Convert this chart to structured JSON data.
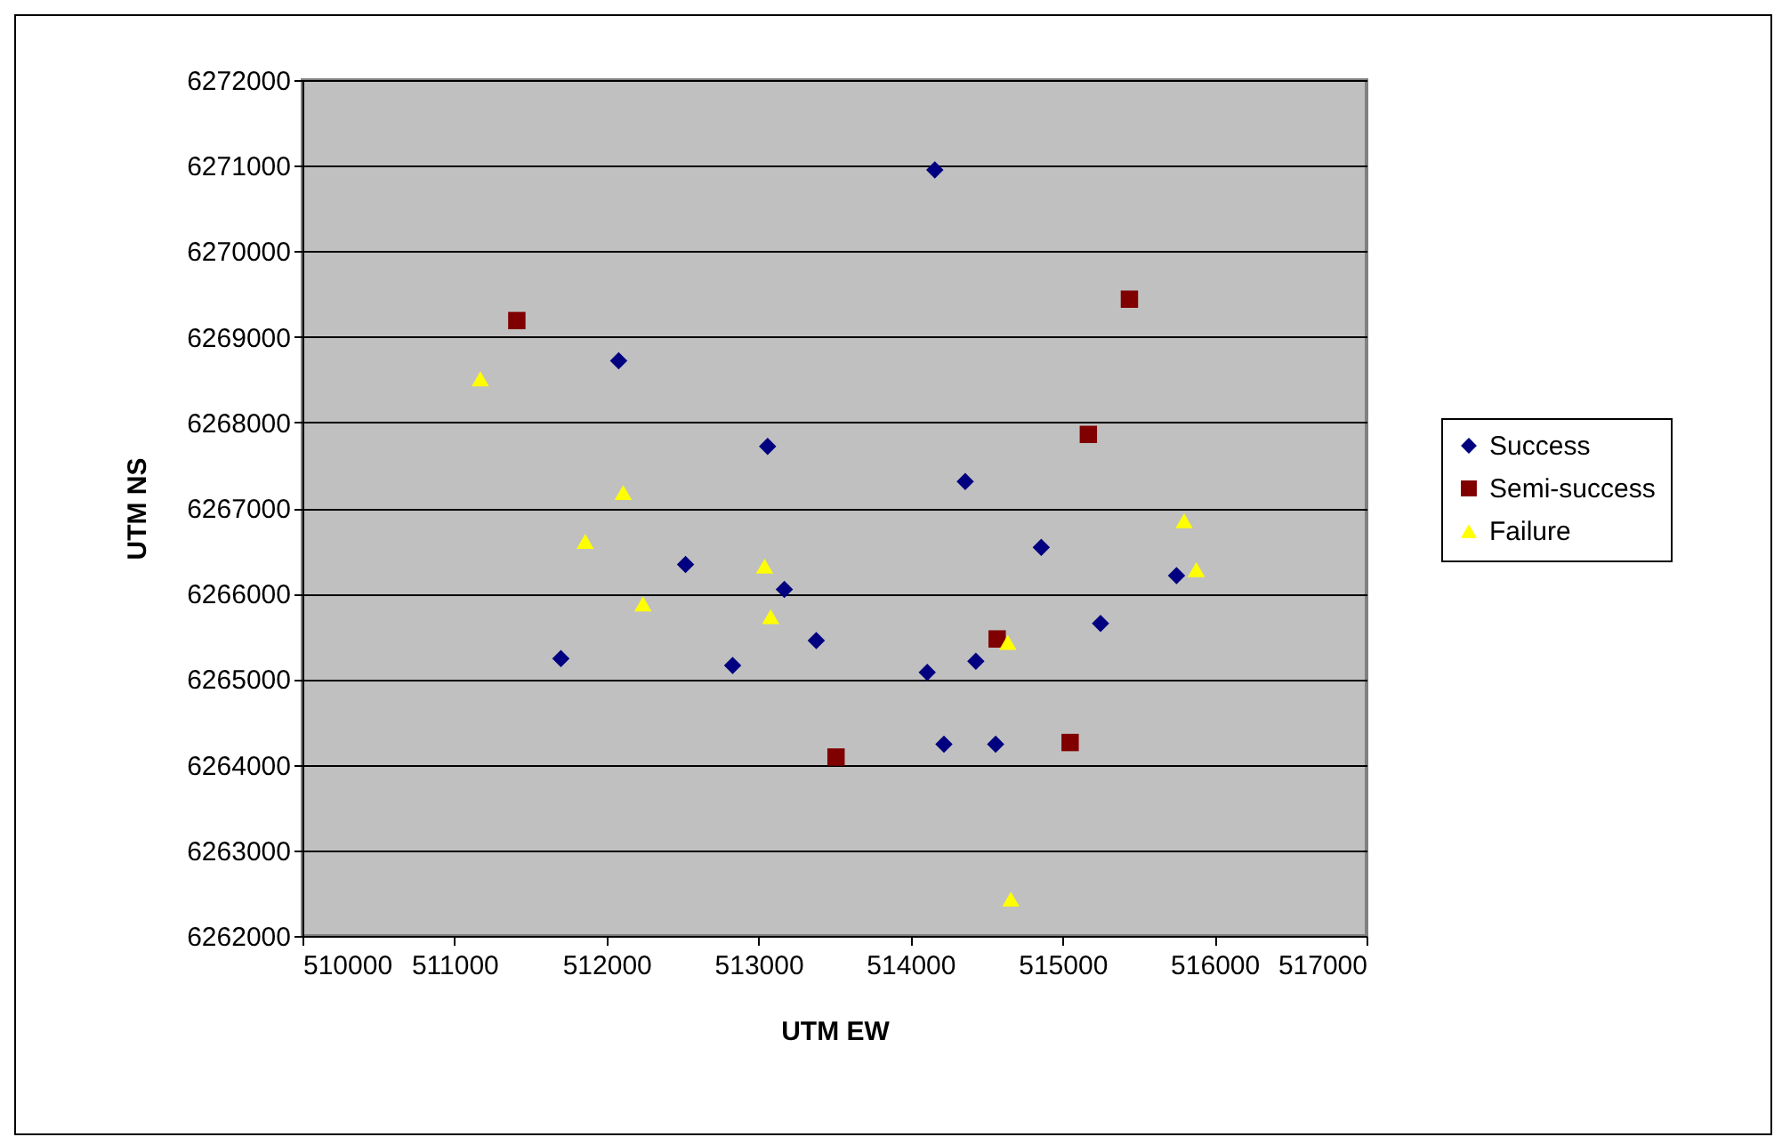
{
  "chart_data": {
    "type": "scatter",
    "xlabel": "UTM EW",
    "ylabel": "UTM NS",
    "xlim": [
      510000,
      517000
    ],
    "xticks": [
      510000,
      511000,
      512000,
      513000,
      514000,
      515000,
      516000,
      517000
    ],
    "ylim": [
      6262000,
      6272000
    ],
    "yticks": [
      6262000,
      6263000,
      6264000,
      6265000,
      6266000,
      6267000,
      6268000,
      6269000,
      6270000,
      6271000,
      6272000
    ],
    "grid": "y",
    "legend": "right",
    "series": [
      {
        "name": "Success",
        "color": "#000080",
        "marker": "diamond",
        "x": [
          512080,
          513060,
          514160,
          514360,
          511700,
          512520,
          512830,
          513170,
          513380,
          514860,
          515750,
          515250,
          514110,
          514430,
          514220,
          514560
        ],
        "values": [
          6268720,
          6267720,
          6270950,
          6267310,
          6265240,
          6266340,
          6265160,
          6266050,
          6265450,
          6266540,
          6266210,
          6265650,
          6265080,
          6265210,
          6264240,
          6264240
        ]
      },
      {
        "name": "Semi-success",
        "color": "#800000",
        "marker": "square",
        "x": [
          511410,
          515440,
          515170,
          514570,
          513510,
          515050
        ],
        "values": [
          6269190,
          6269440,
          6267860,
          6265470,
          6264090,
          6264260
        ]
      },
      {
        "name": "Failure",
        "color": "#ffff00",
        "marker": "triangle",
        "x": [
          511170,
          512110,
          511860,
          512240,
          513040,
          513080,
          515800,
          515880,
          514640,
          514660
        ],
        "values": [
          6268510,
          6267180,
          6266610,
          6265880,
          6266320,
          6265730,
          6266850,
          6266280,
          6265430,
          6262430
        ]
      }
    ]
  }
}
